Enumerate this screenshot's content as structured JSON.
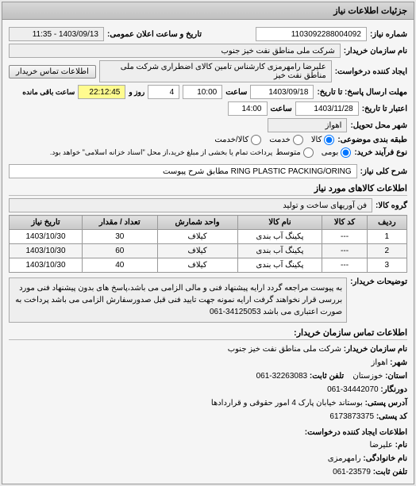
{
  "panel_title": "جزئیات اطلاعات نیاز",
  "req_number_label": "شماره نیاز:",
  "req_number": "1103092288004092",
  "announce_label": "تاریخ و ساعت اعلان عمومی:",
  "announce_value": "1403/09/13 - 11:35",
  "buyer_label": "نام سازمان خریدار:",
  "buyer_name": "شرکت ملی مناطق نفت خیز جنوب",
  "requester_label": "ایجاد کننده درخواست:",
  "requester_name": "علیرضا رامهرمزی کارشناس تامین کالای اضطراری شرکت ملی مناطق نفت خیز",
  "contact_btn": "اطلاعات تماس خریدار",
  "deadline_label": "مهلت ارسال پاسخ: تا تاریخ:",
  "deadline_date": "1403/09/18",
  "time_label": "ساعت",
  "deadline_time": "10:00",
  "days_label": "روز و",
  "days_value": "4",
  "remain_time": "22:12:45",
  "remain_label": "ساعت باقی مانده",
  "validity_label": "اعتبار تا تاریخ:",
  "validity_date": "1403/11/28",
  "validity_time": "14:00",
  "delivery_city_label": "شهر محل تحویل:",
  "delivery_city": "اهواز",
  "packaging_label": "طبقه بندی موضوعی:",
  "radio_all": "کالا",
  "radio_service": "خدمت",
  "radio_both": "کالا/خدمت",
  "purchase_type_label": "نوع فرآیند خرید:",
  "radio_one": "بومی",
  "radio_two": "متوسط",
  "purchase_note": "پرداخت تمام یا بخشی از مبلغ خرید،از محل \"اسناد خزانه اسلامی\" خواهد بود.",
  "key_label": "شرح کلی نیاز:",
  "key_value": "RING PLASTIC PACKING/ORING مطابق شرح پیوست",
  "items_title": "اطلاعات کالاهای مورد نیاز",
  "tech_label": "فن آوریهای ساخت و تولید",
  "group_label": "گروه کالا:",
  "table": {
    "headers": [
      "ردیف",
      "کد کالا",
      "نام کالا",
      "واحد شمارش",
      "تعداد / مقدار",
      "تاریخ نیاز"
    ],
    "rows": [
      [
        "1",
        "---",
        "پکینگ آب بندی",
        "کیلاف",
        "30",
        "1403/10/30"
      ],
      [
        "2",
        "---",
        "پکینگ آب بندی",
        "کیلاف",
        "60",
        "1403/10/30"
      ],
      [
        "3",
        "---",
        "پکینگ آب بندی",
        "کیلاف",
        "40",
        "1403/10/30"
      ]
    ]
  },
  "notes_label": "توضیحات خریدار:",
  "notes_text": "به پیوست مراجعه گردد ارایه پیشنهاد فنی و مالی الزامی می باشد،پاسخ های بدون پیشنهاد فنی مورد بررسی قرار نخواهند گرفت ارایه نمونه جهت تایید فنی قبل صدورسفارش الزامی می باشد پرداخت به صورت اعتباری می باشد 34125053-061",
  "contact_title": "اطلاعات تماس سازمان خریدار:",
  "org_name_label": "نام سازمان خریدار:",
  "org_name": "شرکت ملی مناطق نفت خیز جنوب",
  "city_label": "شهر:",
  "city": "اهواز",
  "province_label": "استان:",
  "province": "خوزستان",
  "phone_label": "تلفن ثابت:",
  "phone": "32263083-061",
  "fax_label": "دورنگار:",
  "fax": "34442070-061",
  "address_label": "آدرس پستی:",
  "address": "بوستاند خیابان پارک 4 امور حقوقی و قراردادها",
  "postal_label": "کد پستی:",
  "postal": "6173873375",
  "creator_title": "اطلاعات ایجاد کننده درخواست:",
  "name_label": "نام:",
  "name": "علیرضا",
  "surname_label": "نام خانوادگی:",
  "surname": "رامهرمزی",
  "creator_phone_label": "تلفن ثابت:",
  "creator_phone": "23579-061"
}
